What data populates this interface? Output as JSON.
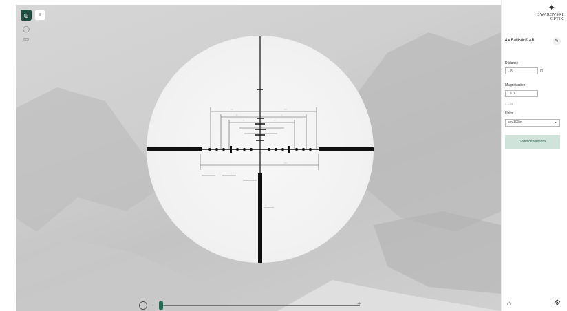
{
  "toolbar": {
    "active_tool_icon": "reticle-target-icon",
    "second_tool_label": "≡",
    "side_tools": [
      "lightbulb-icon",
      "ruler-icon"
    ]
  },
  "zoom": {
    "minus": "-",
    "plus": "+",
    "level": 0.0
  },
  "panel": {
    "logo_line1": "SWAROVSKI",
    "logo_line2": "OPTIK",
    "reticle_title": "4A Ballistic® 4B",
    "distance_label": "Distance",
    "distance_value": "100",
    "distance_unit": "m",
    "magnification_label": "Magnification",
    "magnification_value": "10.0",
    "magnification_hint": "4 – 24",
    "units_label": "Units",
    "units_value": "cm/100m",
    "show_button": "Show dimensions"
  },
  "colors": {
    "accent": "#1f4d3f",
    "button_bg": "#cfe3db",
    "button_text": "#2d5b4b",
    "reticle": "#111111"
  }
}
